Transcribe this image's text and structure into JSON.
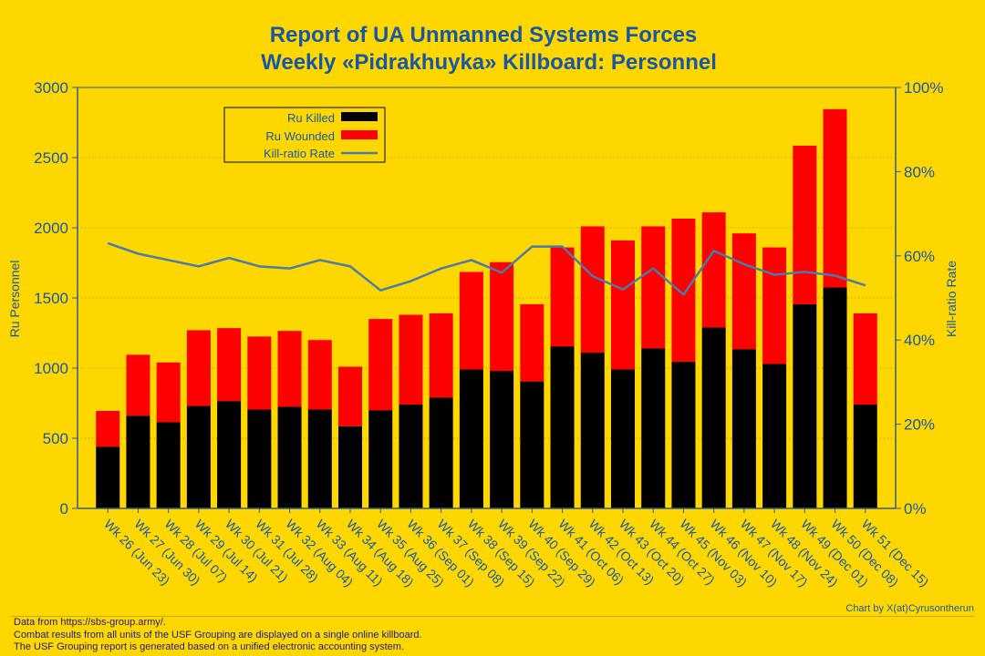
{
  "colors": {
    "background": "#FFD700",
    "killed": "#000000",
    "wounded": "#FF0000",
    "ratio_line": "#4A7BAA",
    "text_blue": "#1757A6",
    "axis": "#2E5C8A"
  },
  "chart_data": {
    "type": "bar",
    "title_line1": "Report of UA Unmanned Systems Forces",
    "title_line2": "Weekly «Pidrakhuyka» Killboard: Personnel",
    "ylabel": "Ru Personnel",
    "y2label": "Kill-ratio Rate",
    "ylim": [
      0,
      3000
    ],
    "y2lim": [
      0,
      100
    ],
    "yticks": [
      "0",
      "500",
      "1000",
      "1500",
      "2000",
      "2500",
      "3000"
    ],
    "y2ticks": [
      "0%",
      "20%",
      "40%",
      "60%",
      "80%",
      "100%"
    ],
    "stacked": true,
    "legend_position": "top-left",
    "grid": "horizontal dotted",
    "categories": [
      "Wk 26 (Jun 23)",
      "Wk 27 (Jun 30)",
      "Wk 28 (Jul 07)",
      "Wk 29 (Jul 14)",
      "Wk 30 (Jul 21)",
      "Wk 31 (Jul 28)",
      "Wk 32 (Aug 04)",
      "Wk 33 (Aug 11)",
      "Wk 34 (Aug 18)",
      "Wk 35 (Aug 25)",
      "Wk 36 (Sep 01)",
      "Wk 37 (Sep 08)",
      "Wk 38 (Sep 15)",
      "Wk 39 (Sep 22)",
      "Wk 40 (Sep 29)",
      "Wk 41 (Oct 06)",
      "Wk 42 (Oct 13)",
      "Wk 43 (Oct 20)",
      "Wk 44 (Oct 27)",
      "Wk 45 (Nov 03)",
      "Wk 46 (Nov 10)",
      "Wk 47 (Nov 17)",
      "Wk 48 (Nov 24)",
      "Wk 49 (Dec 01)",
      "Wk 50 (Dec 08)",
      "Wk 51 (Dec 15)"
    ],
    "series": [
      {
        "name": "Ru Killed",
        "values": [
          440,
          660,
          615,
          730,
          765,
          705,
          725,
          705,
          585,
          700,
          740,
          790,
          990,
          980,
          905,
          1155,
          1110,
          990,
          1140,
          1045,
          1290,
          1135,
          1030,
          1455,
          1575,
          740
        ]
      },
      {
        "name": "Ru Wounded",
        "values": [
          255,
          435,
          425,
          540,
          520,
          520,
          540,
          495,
          425,
          650,
          640,
          600,
          695,
          775,
          550,
          705,
          900,
          920,
          870,
          1020,
          820,
          825,
          830,
          1130,
          1270,
          650
        ]
      },
      {
        "name": "Kill-ratio Rate",
        "axis": "right",
        "values": [
          63,
          60.5,
          59,
          57.5,
          59.5,
          57.5,
          57,
          59,
          57.5,
          51.8,
          54,
          57,
          59,
          56,
          62.2,
          62.2,
          55.2,
          52,
          57,
          50.8,
          61.2,
          58,
          55.5,
          56.2,
          55.3,
          53
        ]
      }
    ]
  },
  "credit": "Chart by X(at)Cyrusontherun",
  "footer": {
    "line1": "Data from https://sbs-group.army/.",
    "line2": "Combat results from all units of the USF Grouping are displayed on a single online killboard.",
    "line3": "The USF Grouping report is generated based on a unified electronic accounting system."
  }
}
